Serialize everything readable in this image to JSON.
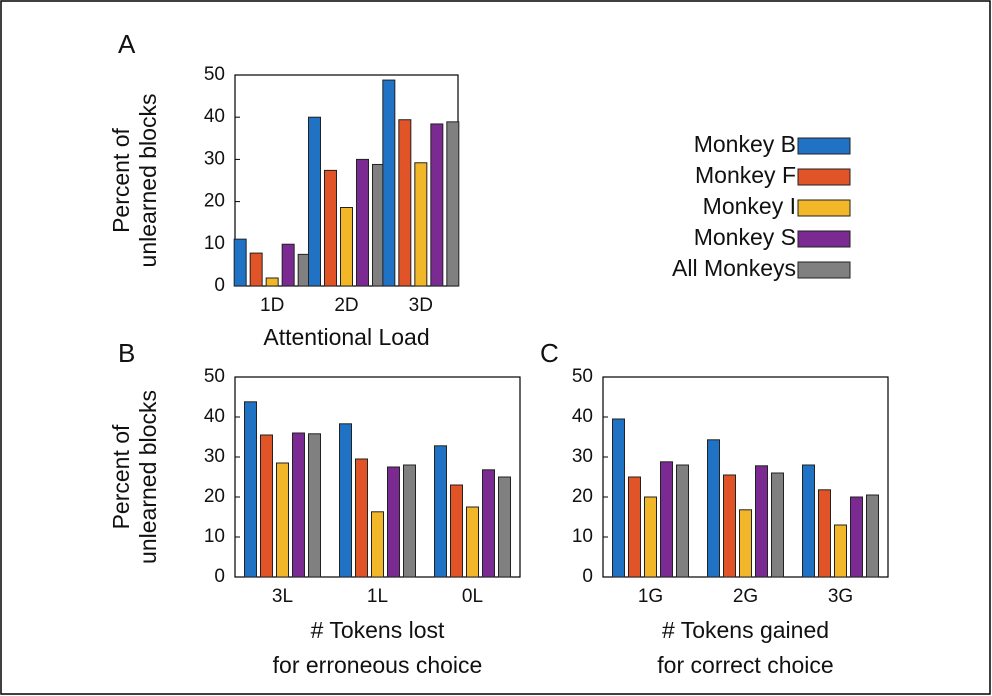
{
  "chart_data": [
    {
      "type": "bar",
      "panel_label": "A",
      "y_label": [
        "Percent of",
        "unlearned blocks"
      ],
      "x_label": [
        "Attentional Load"
      ],
      "categories": [
        "1D",
        "2D",
        "3D"
      ],
      "ylim": [
        0,
        50
      ],
      "yticks": [
        0,
        10,
        20,
        30,
        40,
        50
      ],
      "legend": "right",
      "series": [
        {
          "name": "Monkey B",
          "color": "#1f72c4",
          "values": [
            11.1,
            40,
            48.8
          ]
        },
        {
          "name": "Monkey F",
          "color": "#e05428",
          "values": [
            7.8,
            27.4,
            39.4
          ]
        },
        {
          "name": "Monkey I",
          "color": "#f2b728",
          "values": [
            1.9,
            18.6,
            29.2
          ]
        },
        {
          "name": "Monkey S",
          "color": "#7b2a92",
          "values": [
            9.9,
            30,
            38.4
          ]
        },
        {
          "name": "All Monkeys",
          "color": "#808080",
          "values": [
            7.5,
            28.8,
            38.9
          ]
        }
      ]
    },
    {
      "type": "bar",
      "panel_label": "B",
      "y_label": [
        "Percent of",
        "unlearned blocks"
      ],
      "x_label": [
        "# Tokens lost",
        "for erroneous choice"
      ],
      "categories": [
        "3L",
        "1L",
        "0L"
      ],
      "ylim": [
        0,
        50
      ],
      "yticks": [
        0,
        10,
        20,
        30,
        40,
        50
      ],
      "series": [
        {
          "name": "Monkey B",
          "color": "#1f72c4",
          "values": [
            43.8,
            38.3,
            32.8
          ]
        },
        {
          "name": "Monkey F",
          "color": "#e05428",
          "values": [
            35.5,
            29.5,
            23
          ]
        },
        {
          "name": "Monkey I",
          "color": "#f2b728",
          "values": [
            28.5,
            16.3,
            17.5
          ]
        },
        {
          "name": "Monkey S",
          "color": "#7b2a92",
          "values": [
            36,
            27.5,
            26.8
          ]
        },
        {
          "name": "All Monkeys",
          "color": "#808080",
          "values": [
            35.8,
            28,
            25
          ]
        }
      ]
    },
    {
      "type": "bar",
      "panel_label": "C",
      "x_label": [
        "# Tokens gained",
        "for correct choice"
      ],
      "categories": [
        "1G",
        "2G",
        "3G"
      ],
      "ylim": [
        0,
        50
      ],
      "yticks": [
        0,
        10,
        20,
        30,
        40,
        50
      ],
      "series": [
        {
          "name": "Monkey B",
          "color": "#1f72c4",
          "values": [
            39.5,
            34.3,
            28
          ]
        },
        {
          "name": "Monkey F",
          "color": "#e05428",
          "values": [
            25,
            25.5,
            21.8
          ]
        },
        {
          "name": "Monkey I",
          "color": "#f2b728",
          "values": [
            20,
            16.8,
            13
          ]
        },
        {
          "name": "Monkey S",
          "color": "#7b2a92",
          "values": [
            28.8,
            27.8,
            20
          ]
        },
        {
          "name": "All Monkeys",
          "color": "#808080",
          "values": [
            28,
            26,
            20.5
          ]
        }
      ]
    }
  ]
}
